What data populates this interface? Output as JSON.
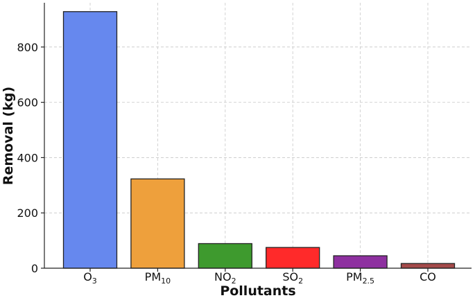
{
  "chart_data": {
    "type": "bar",
    "title": "",
    "xlabel": "Pollutants",
    "ylabel": "Removal (kg)",
    "categories": [
      {
        "base": "O",
        "sub": "3"
      },
      {
        "base": "PM",
        "sub": "10"
      },
      {
        "base": "NO",
        "sub": "2"
      },
      {
        "base": "SO",
        "sub": "2"
      },
      {
        "base": "PM",
        "sub": "2.5"
      },
      {
        "base": "CO",
        "sub": ""
      }
    ],
    "values": [
      928,
      323,
      89,
      75,
      45,
      17
    ],
    "colors": [
      "#6688ee",
      "#eea03c",
      "#3e9a2e",
      "#ff2a2a",
      "#8e30a0",
      "#a44a4a"
    ],
    "ylim": [
      0,
      960
    ],
    "yticks": [
      0,
      200,
      400,
      600,
      800
    ],
    "grid": true,
    "legend": "none"
  }
}
